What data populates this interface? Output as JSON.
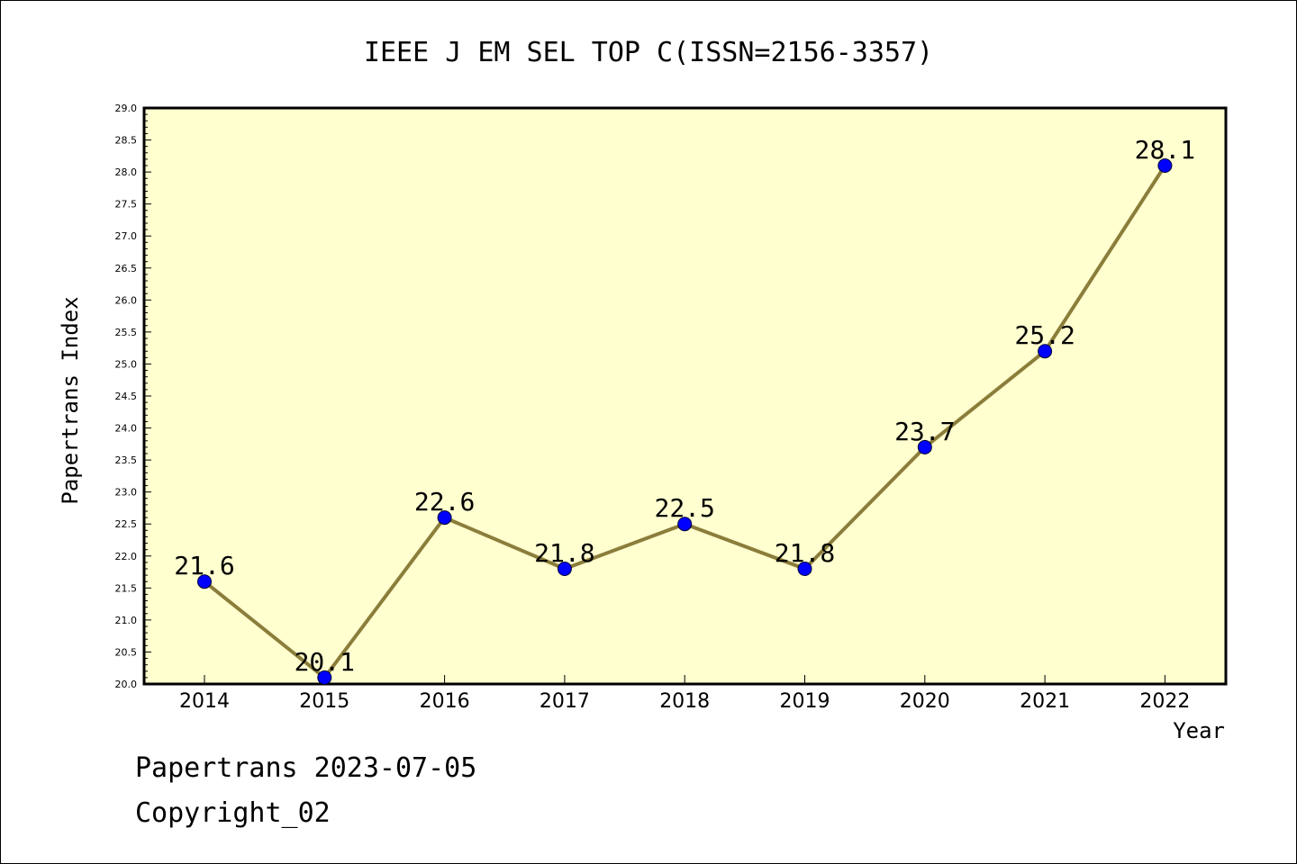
{
  "chart_data": {
    "type": "line",
    "title": "IEEE J EM SEL TOP C(ISSN=2156-3357)",
    "xlabel": "Year",
    "ylabel": "Papertrans Index",
    "categories": [
      "2014",
      "2015",
      "2016",
      "2017",
      "2018",
      "2019",
      "2020",
      "2021",
      "2022"
    ],
    "values": [
      21.6,
      20.1,
      22.6,
      21.8,
      22.5,
      21.8,
      23.7,
      25.2,
      28.1
    ],
    "data_labels": [
      "21.6",
      "20.1",
      "22.6",
      "21.8",
      "22.5",
      "21.8",
      "23.7",
      "25.2",
      "28.1"
    ],
    "ylim": [
      20.0,
      29.0
    ],
    "yticks": [
      "20.0",
      "20.5",
      "21.0",
      "21.5",
      "22.0",
      "22.5",
      "23.0",
      "23.5",
      "24.0",
      "24.5",
      "25.0",
      "25.5",
      "26.0",
      "26.5",
      "27.0",
      "27.5",
      "28.0",
      "28.5",
      "29.0"
    ],
    "grid": false,
    "colors": {
      "plot_background": "#ffffd0",
      "line": "#8b7d3a",
      "marker": "#0000ff"
    }
  },
  "footer": {
    "line1": "Papertrans 2023-07-05",
    "line2": "Copyright_02"
  }
}
